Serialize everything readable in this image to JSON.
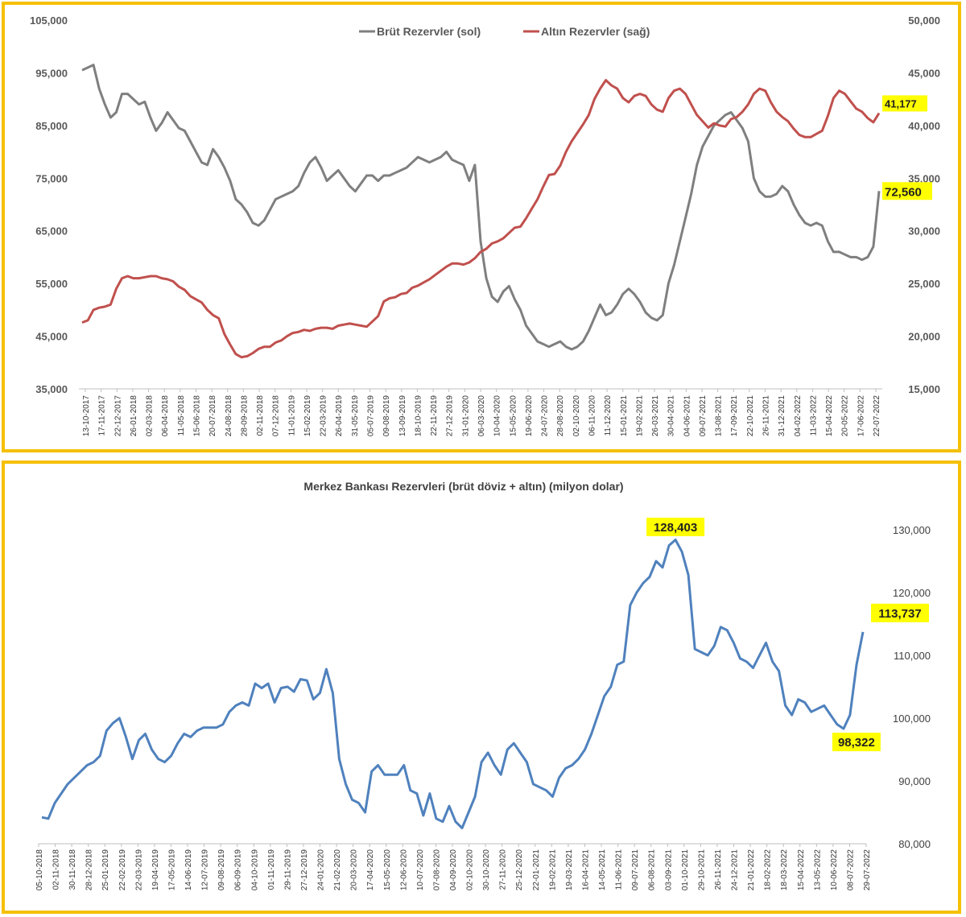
{
  "chart_data": [
    {
      "type": "line",
      "title": "",
      "legend": {
        "placement": "top-center"
      },
      "grid": false,
      "y_left": {
        "ticks": [
          "105,000",
          "95,000",
          "85,000",
          "75,000",
          "65,000",
          "55,000",
          "45,000",
          "35,000"
        ],
        "ylim": [
          35000,
          105000
        ]
      },
      "y_right": {
        "ticks": [
          "50,000",
          "45,000",
          "40,000",
          "35,000",
          "30,000",
          "25,000",
          "20,000",
          "15,000"
        ],
        "ylim": [
          15000,
          50000
        ]
      },
      "x_tick_labels": [
        "13-10-2017",
        "17-11-2017",
        "22-12-2017",
        "26-01-2018",
        "02-03-2018",
        "06-04-2018",
        "11-05-2018",
        "15-06-2018",
        "20-07-2018",
        "24-08-2018",
        "28-09-2018",
        "02-11-2018",
        "07-12-2018",
        "11-01-2019",
        "15-02-2019",
        "22-03-2019",
        "26-04-2019",
        "31-05-2019",
        "05-07-2019",
        "09-08-2019",
        "13-09-2019",
        "18-10-2019",
        "22-11-2019",
        "27-12-2019",
        "31-01-2020",
        "06-03-2020",
        "10-04-2020",
        "15-05-2020",
        "19-06-2020",
        "24-07-2020",
        "28-08-2020",
        "02-10-2020",
        "06-11-2020",
        "11-12-2020",
        "15-01-2021",
        "19-02-2021",
        "26-03-2021",
        "30-04-2021",
        "04-06-2021",
        "09-07-2021",
        "13-08-2021",
        "17-09-2021",
        "22-10-2021",
        "26-11-2021",
        "31-12-2021",
        "04-02-2022",
        "11-03-2022",
        "15-04-2022",
        "20-05-2022",
        "17-06-2022",
        "22-07-2022"
      ],
      "series": [
        {
          "name": "Brüt Rezervler (sol)",
          "axis": "left",
          "color": "#7f7f7f",
          "last_label": "72,560",
          "values": [
            95500,
            96000,
            96500,
            92000,
            89000,
            86500,
            87500,
            91000,
            91000,
            90000,
            89000,
            89500,
            86500,
            84000,
            85500,
            87500,
            86000,
            84500,
            84000,
            82000,
            80000,
            78000,
            77500,
            80500,
            79000,
            77000,
            74500,
            71000,
            70000,
            68500,
            66500,
            66000,
            67000,
            69000,
            71000,
            71500,
            72000,
            72500,
            73500,
            76000,
            78000,
            79000,
            77000,
            74500,
            75500,
            76500,
            75000,
            73500,
            72500,
            74000,
            75500,
            75500,
            74500,
            75500,
            75500,
            76000,
            76500,
            77000,
            78000,
            79000,
            78500,
            78000,
            78500,
            79000,
            80000,
            78500,
            78000,
            77500,
            74500,
            77500,
            63000,
            56000,
            52500,
            51500,
            53500,
            54500,
            52000,
            50000,
            47000,
            45500,
            44000,
            43500,
            43000,
            43500,
            44000,
            43000,
            42500,
            43000,
            44000,
            46000,
            48500,
            51000,
            49000,
            49500,
            51000,
            53000,
            54000,
            53000,
            51500,
            49500,
            48500,
            48000,
            49000,
            55000,
            58500,
            63000,
            67500,
            72000,
            77500,
            81000,
            83000,
            85000,
            86000,
            87000,
            87500,
            86000,
            84500,
            82000,
            75000,
            72500,
            71500,
            71500,
            72000,
            73500,
            72500,
            70000,
            68000,
            66500,
            66000,
            66500,
            66000,
            63000,
            61000,
            61000,
            60500,
            60000,
            60000,
            59500,
            60000,
            62000,
            72560
          ]
        },
        {
          "name": "Altın Rezervler (sağ)",
          "axis": "right",
          "color": "#c0504d",
          "last_label": "41,177",
          "values": [
            21300,
            21500,
            22500,
            22700,
            22800,
            23000,
            24500,
            25500,
            25700,
            25500,
            25500,
            25600,
            25700,
            25700,
            25500,
            25400,
            25200,
            24700,
            24400,
            23800,
            23500,
            23200,
            22500,
            22000,
            21700,
            20200,
            19200,
            18300,
            18000,
            18100,
            18400,
            18800,
            19000,
            19000,
            19400,
            19600,
            20000,
            20300,
            20400,
            20600,
            20500,
            20700,
            20800,
            20800,
            20700,
            21000,
            21100,
            21200,
            21100,
            21000,
            20900,
            21400,
            21900,
            23300,
            23600,
            23700,
            24000,
            24100,
            24600,
            24800,
            25100,
            25400,
            25800,
            26200,
            26600,
            26900,
            26900,
            26800,
            27000,
            27400,
            28000,
            28300,
            28800,
            29000,
            29300,
            29800,
            30300,
            30400,
            31200,
            32100,
            33000,
            34200,
            35300,
            35400,
            36200,
            37500,
            38500,
            39300,
            40100,
            41000,
            42500,
            43500,
            44300,
            43800,
            43500,
            42600,
            42200,
            42800,
            43000,
            42800,
            42000,
            41500,
            41300,
            42600,
            43300,
            43500,
            43000,
            42000,
            41000,
            40400,
            39800,
            40200,
            40000,
            39900,
            40600,
            40800,
            41300,
            42000,
            43000,
            43500,
            43300,
            42200,
            41300,
            40800,
            40400,
            39700,
            39100,
            38900,
            38900,
            39200,
            39500,
            40900,
            42600,
            43300,
            43000,
            42300,
            41600,
            41300,
            40700,
            40300,
            41177
          ]
        }
      ]
    },
    {
      "type": "line",
      "title": "Merkez Bankası Rezervleri (brüt döviz + altın) (milyon dolar)",
      "grid": false,
      "y": {
        "ticks": [
          "130,000",
          "120,000",
          "110,000",
          "100,000",
          "90,000",
          "80,000"
        ],
        "ylim": [
          80000,
          130000
        ]
      },
      "x_tick_labels": [
        "05-10-2018",
        "02-11-2018",
        "30-11-2018",
        "28-12-2018",
        "25-01-2019",
        "22-02-2019",
        "22-03-2019",
        "19-04-2019",
        "17-05-2019",
        "14-06-2019",
        "12-07-2019",
        "09-08-2019",
        "06-09-2019",
        "04-10-2019",
        "01-11-2019",
        "29-11-2019",
        "27-12-2019",
        "24-01-2020",
        "21-02-2020",
        "20-03-2020",
        "17-04-2020",
        "15-05-2020",
        "12-06-2020",
        "10-07-2020",
        "07-08-2020",
        "04-09-2020",
        "02-10-2020",
        "30-10-2020",
        "27-11-2020",
        "25-12-2020",
        "22-01-2021",
        "19-02-2021",
        "19-03-2021",
        "16-04-2021",
        "14-05-2021",
        "11-06-2021",
        "09-07-2021",
        "06-08-2021",
        "03-09-2021",
        "01-10-2021",
        "29-10-2021",
        "26-11-2021",
        "24-12-2021",
        "21-01-2022",
        "18-02-2022",
        "18-03-2022",
        "15-04-2022",
        "13-05-2022",
        "10-06-2022",
        "08-07-2022",
        "29-07-2022"
      ],
      "annotations": [
        {
          "label": "128,403",
          "value": 128403
        },
        {
          "label": "113,737",
          "value": 113737
        },
        {
          "label": "98,322",
          "value": 98322
        }
      ],
      "series": [
        {
          "name": "",
          "color": "#4f81bd",
          "values": [
            84200,
            84000,
            86500,
            88000,
            89500,
            90500,
            91500,
            92500,
            93000,
            94000,
            98000,
            99200,
            100000,
            97000,
            93500,
            96500,
            97500,
            95000,
            93500,
            93000,
            94000,
            96000,
            97500,
            97000,
            98000,
            98500,
            98500,
            98500,
            99000,
            101000,
            102000,
            102500,
            102000,
            105500,
            104800,
            105500,
            102500,
            104800,
            105000,
            104200,
            106200,
            106000,
            103000,
            104000,
            107800,
            104000,
            93500,
            89500,
            87000,
            86500,
            85000,
            91500,
            92500,
            91000,
            91000,
            91000,
            92500,
            88500,
            88000,
            84500,
            88000,
            84000,
            83500,
            86000,
            83500,
            82500,
            85000,
            87500,
            93000,
            94500,
            92500,
            91000,
            95000,
            96000,
            94500,
            93000,
            89500,
            89000,
            88500,
            87500,
            90500,
            92000,
            92500,
            93500,
            95000,
            97500,
            100500,
            103500,
            105000,
            108500,
            109000,
            118000,
            120000,
            121500,
            122500,
            125000,
            124000,
            127500,
            128403,
            126500,
            122800,
            111000,
            110500,
            110000,
            111500,
            114500,
            114000,
            112000,
            109500,
            109000,
            108000,
            110000,
            112000,
            109000,
            107500,
            102000,
            100500,
            103000,
            102500,
            101000,
            101500,
            102000,
            100500,
            99000,
            98322,
            100500,
            108500,
            113737
          ]
        }
      ]
    }
  ]
}
